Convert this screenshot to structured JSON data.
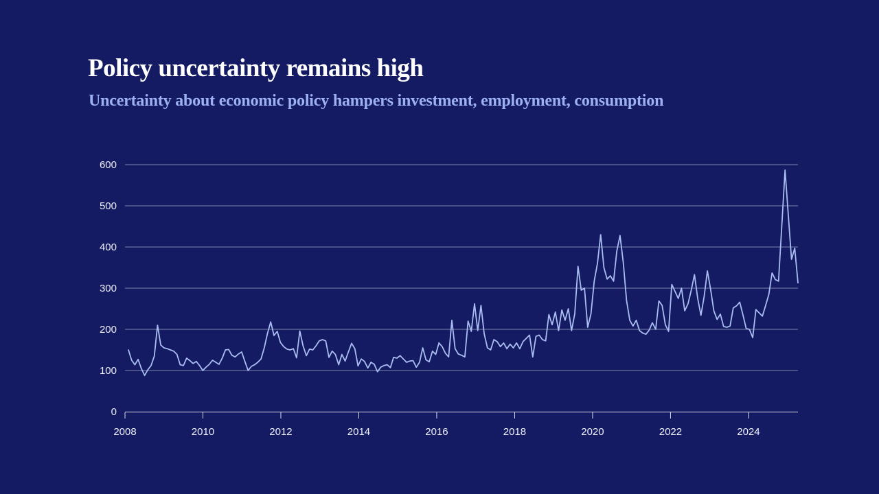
{
  "header": {
    "title": "Policy uncertainty remains high",
    "subtitle": "Uncertainty about economic policy hampers investment, employment, consumption"
  },
  "theme": {
    "background": "#141B63",
    "title_color": "#FFFFFF",
    "subtitle_color": "#9DB1F0",
    "line_color": "#A9BDF2",
    "grid_color": "#D6DCF0",
    "axis_color": "#E4E8F5",
    "axis_label_color": "#EDEFF8"
  },
  "chart_data": {
    "type": "line",
    "frequency": "monthly",
    "x_start_year": 2008,
    "x_start_month": 1,
    "x_end_year": 2025,
    "x_end_month": 4,
    "ylim": [
      0,
      600
    ],
    "y_ticks": [
      0,
      100,
      200,
      300,
      400,
      500,
      600
    ],
    "x_tick_labels": [
      "2008",
      "2010",
      "2012",
      "2014",
      "2016",
      "2018",
      "2020",
      "2022",
      "2024"
    ],
    "grid": "horizontal-only",
    "legend": "none",
    "series": [
      {
        "name": "policy-uncertainty-index",
        "values": [
          150,
          125,
          114,
          127,
          105,
          88,
          102,
          112,
          135,
          210,
          162,
          155,
          153,
          150,
          147,
          139,
          114,
          112,
          130,
          124,
          117,
          122,
          112,
          100,
          108,
          115,
          125,
          120,
          115,
          130,
          150,
          151,
          137,
          133,
          140,
          145,
          122,
          100,
          110,
          114,
          120,
          128,
          155,
          190,
          218,
          185,
          195,
          168,
          158,
          152,
          150,
          153,
          131,
          196,
          160,
          136,
          152,
          150,
          160,
          172,
          175,
          172,
          132,
          147,
          139,
          114,
          139,
          123,
          145,
          166,
          153,
          111,
          128,
          122,
          106,
          120,
          115,
          97,
          108,
          112,
          114,
          107,
          132,
          130,
          136,
          128,
          120,
          123,
          124,
          108,
          120,
          155,
          126,
          121,
          147,
          139,
          167,
          158,
          142,
          133,
          222,
          153,
          140,
          137,
          133,
          220,
          195,
          262,
          197,
          258,
          189,
          155,
          150,
          175,
          170,
          158,
          167,
          153,
          164,
          155,
          167,
          153,
          170,
          178,
          186,
          133,
          183,
          186,
          175,
          172,
          236,
          211,
          242,
          197,
          247,
          222,
          250,
          197,
          238,
          353,
          295,
          300,
          205,
          238,
          317,
          360,
          430,
          350,
          322,
          330,
          317,
          390,
          428,
          361,
          270,
          222,
          208,
          222,
          197,
          191,
          188,
          198,
          216,
          200,
          269,
          258,
          211,
          195,
          309,
          292,
          275,
          300,
          245,
          262,
          295,
          333,
          275,
          234,
          280,
          342,
          297,
          245,
          224,
          237,
          207,
          205,
          208,
          252,
          257,
          266,
          235,
          202,
          200,
          180,
          248,
          240,
          232,
          258,
          285,
          337,
          321,
          317,
          450,
          587,
          478,
          370,
          397,
          313
        ]
      }
    ]
  }
}
